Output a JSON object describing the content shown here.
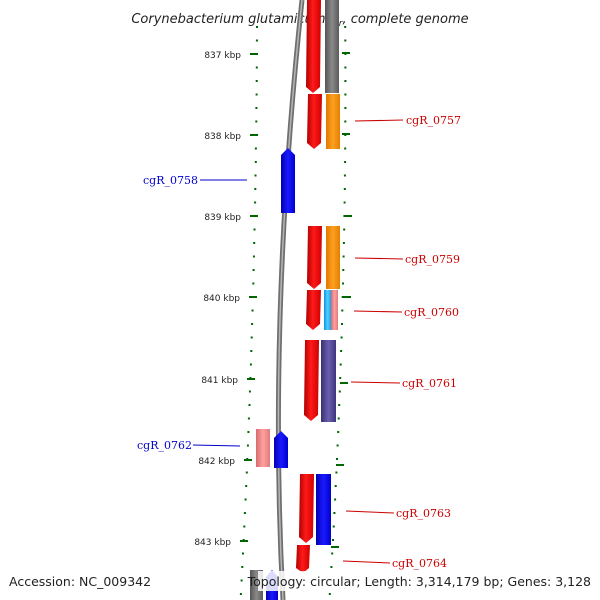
{
  "title": {
    "text": "Corynebacterium glutamicum R",
    "subscript": "r",
    "suffix": ", complete genome"
  },
  "footer": {
    "accession": "Accession: NC_009342",
    "topology": "Topology: circular; Length: 3,314,179 bp; Genes: 3,128"
  },
  "scale_labels": [
    "837 kbp",
    "838 kbp",
    "839 kbp",
    "840 kbp",
    "841 kbp",
    "842 kbp",
    "843 kbp"
  ],
  "genes": [
    {
      "id": "cgR_0757",
      "strand": "+",
      "color": "#cc0000"
    },
    {
      "id": "cgR_0758",
      "strand": "-",
      "color": "#0000cc"
    },
    {
      "id": "cgR_0759",
      "strand": "+",
      "color": "#cc0000"
    },
    {
      "id": "cgR_0760",
      "strand": "+",
      "color": "#cc0000"
    },
    {
      "id": "cgR_0761",
      "strand": "+",
      "color": "#cc0000"
    },
    {
      "id": "cgR_0762",
      "strand": "-",
      "color": "#0000cc"
    },
    {
      "id": "cgR_0763",
      "strand": "+",
      "color": "#cc0000"
    },
    {
      "id": "cgR_0764",
      "strand": "+",
      "color": "#cc0000"
    }
  ],
  "colors": {
    "forward_cds": "#ff0000",
    "reverse_cds": "#0000ff",
    "backbone": "#777777",
    "tick": "#006600",
    "cog_gray": "#666666",
    "cog_orange": "#ff8c00",
    "cog_cyan": "#1eb4ff",
    "cog_pink": "#f08080",
    "cog_slate": "#4a3f8c",
    "cog_blue": "#0000ee"
  }
}
